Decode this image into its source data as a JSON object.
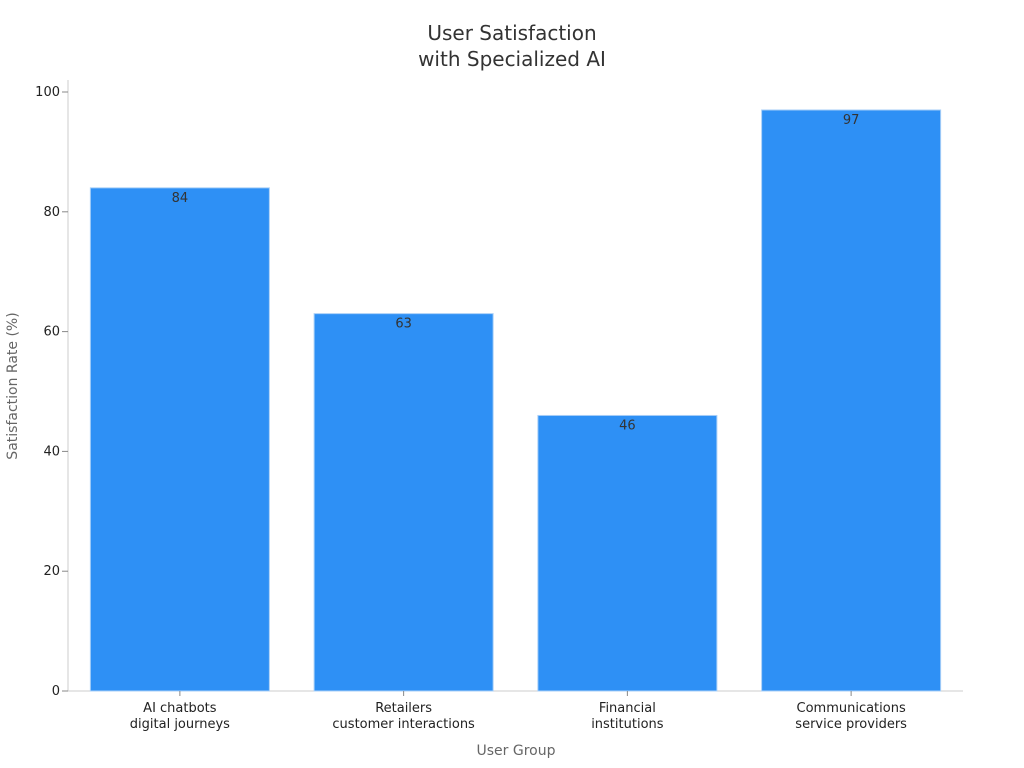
{
  "chart_data": {
    "type": "bar",
    "title_lines": [
      "User Satisfaction",
      "with Specialized AI"
    ],
    "xlabel": "User Group",
    "ylabel": "Satisfaction Rate (%)",
    "categories": [
      [
        "AI chatbots",
        "digital journeys"
      ],
      [
        "Retailers",
        "customer interactions"
      ],
      [
        "Financial",
        "institutions"
      ],
      [
        "Communications",
        "service providers"
      ]
    ],
    "values": [
      84,
      63,
      46,
      97
    ],
    "value_labels": [
      "84",
      "63",
      "46",
      "97"
    ],
    "yticks": [
      0,
      20,
      40,
      60,
      80,
      100
    ],
    "ylim": [
      0,
      100
    ],
    "grid": false,
    "bar_color": "#2e90f5"
  }
}
